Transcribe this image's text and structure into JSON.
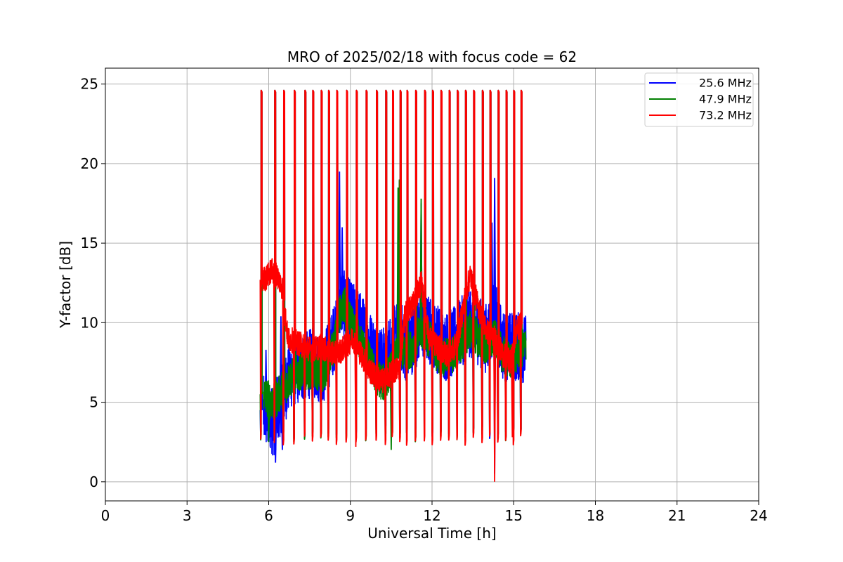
{
  "chart_data": {
    "type": "line",
    "title": "MRO of 2025/02/18 with focus code = 62",
    "xlabel": "Universal Time [h]",
    "ylabel": "Y-factor [dB]",
    "xlim": [
      0,
      24
    ],
    "ylim": [
      -1.2,
      26
    ],
    "xticks": [
      0,
      3,
      6,
      9,
      12,
      15,
      18,
      21,
      24
    ],
    "yticks": [
      0,
      5,
      10,
      15,
      20,
      25
    ],
    "grid": true,
    "legend_position": "top-right",
    "calibration_spike_times": [
      5.72,
      6.22,
      6.55,
      6.94,
      7.33,
      7.62,
      7.93,
      8.2,
      8.5,
      8.86,
      9.22,
      9.58,
      9.96,
      10.3,
      10.55,
      10.83,
      11.08,
      11.4,
      11.73,
      12.02,
      12.33,
      12.63,
      12.93,
      13.23,
      13.53,
      13.85,
      14.13,
      14.43,
      14.72,
      15.0,
      15.27
    ],
    "calibration_peak": 24.6,
    "calibration_floor": 3.0,
    "series": [
      {
        "name": "25.6 MHz",
        "color": "#0000ff",
        "x": [
          5.8,
          6.0,
          6.2,
          6.5,
          6.8,
          7.2,
          7.6,
          8.0,
          8.4,
          8.6,
          8.8,
          9.0,
          9.3,
          9.6,
          9.9,
          10.2,
          10.5,
          10.8,
          11.0,
          11.3,
          11.6,
          11.9,
          12.2,
          12.5,
          12.8,
          13.1,
          13.4,
          13.7,
          14.0,
          14.3,
          14.6,
          14.9,
          15.2,
          15.45
        ],
        "y": [
          4.5,
          4.0,
          3.8,
          5.5,
          6.8,
          7.2,
          7.5,
          7.0,
          9.0,
          11.5,
          11.0,
          10.5,
          10.0,
          9.0,
          8.0,
          7.5,
          8.5,
          9.5,
          8.5,
          9.0,
          10.0,
          9.5,
          9.0,
          8.5,
          8.8,
          9.5,
          10.0,
          9.5,
          9.0,
          10.5,
          8.5,
          8.5,
          8.5,
          8.3
        ],
        "peaks": [
          [
            5.9,
            8.3
          ],
          [
            6.45,
            10.4
          ],
          [
            8.6,
            19.5
          ],
          [
            10.8,
            18.9
          ],
          [
            11.6,
            17.5
          ],
          [
            14.3,
            19.1
          ],
          [
            14.2,
            16.3
          ],
          [
            8.7,
            16.0
          ]
        ],
        "dips": [
          [
            6.25,
            1.2
          ],
          [
            6.5,
            2.0
          ],
          [
            14.3,
            0.5
          ]
        ]
      },
      {
        "name": "47.9 MHz",
        "color": "#008000",
        "x": [
          5.8,
          6.0,
          6.2,
          6.5,
          6.8,
          7.2,
          7.6,
          8.0,
          8.4,
          8.6,
          8.8,
          9.0,
          9.3,
          9.6,
          9.9,
          10.2,
          10.5,
          10.8,
          11.0,
          11.3,
          11.6,
          11.9,
          12.2,
          12.5,
          12.8,
          13.1,
          13.4,
          13.7,
          14.0,
          14.3,
          14.6,
          14.9,
          15.2,
          15.45
        ],
        "y": [
          5.5,
          5.2,
          5.0,
          5.8,
          6.5,
          7.0,
          7.0,
          6.8,
          8.5,
          10.5,
          11.0,
          10.0,
          9.0,
          8.0,
          6.8,
          6.2,
          7.0,
          8.5,
          8.0,
          8.5,
          9.5,
          9.0,
          8.0,
          7.8,
          8.0,
          8.8,
          9.5,
          9.0,
          8.5,
          9.0,
          8.0,
          7.5,
          8.3,
          8.5
        ],
        "peaks": [
          [
            10.8,
            19.0
          ],
          [
            11.6,
            17.8
          ],
          [
            10.75,
            18.5
          ]
        ],
        "dips": [
          [
            6.0,
            2.5
          ],
          [
            10.5,
            2.0
          ]
        ]
      },
      {
        "name": "73.2 MHz",
        "color": "#ff0000",
        "x": [
          5.72,
          5.9,
          6.1,
          6.3,
          6.5,
          6.7,
          7.0,
          7.3,
          7.6,
          7.9,
          8.2,
          8.5,
          8.8,
          9.1,
          9.4,
          9.7,
          10.0,
          10.2,
          10.5,
          10.8,
          11.0,
          11.3,
          11.6,
          11.9,
          12.2,
          12.5,
          12.8,
          13.0,
          13.2,
          13.4,
          13.7,
          14.0,
          14.3,
          14.6,
          14.9,
          15.1,
          15.3
        ],
        "y": [
          12.7,
          12.8,
          13.3,
          13.0,
          12.2,
          9.0,
          8.8,
          8.5,
          8.3,
          8.5,
          8.2,
          8.0,
          8.5,
          9.0,
          8.0,
          7.0,
          6.5,
          6.3,
          6.8,
          7.2,
          10.5,
          11.2,
          12.5,
          9.0,
          8.5,
          8.0,
          8.3,
          9.5,
          11.5,
          13.0,
          11.0,
          9.5,
          9.0,
          8.0,
          7.5,
          9.5,
          10.0
        ],
        "peaks": [],
        "dips": [
          [
            9.2,
            2.2
          ],
          [
            14.3,
            0.0
          ],
          [
            14.95,
            2.8
          ]
        ]
      }
    ]
  }
}
